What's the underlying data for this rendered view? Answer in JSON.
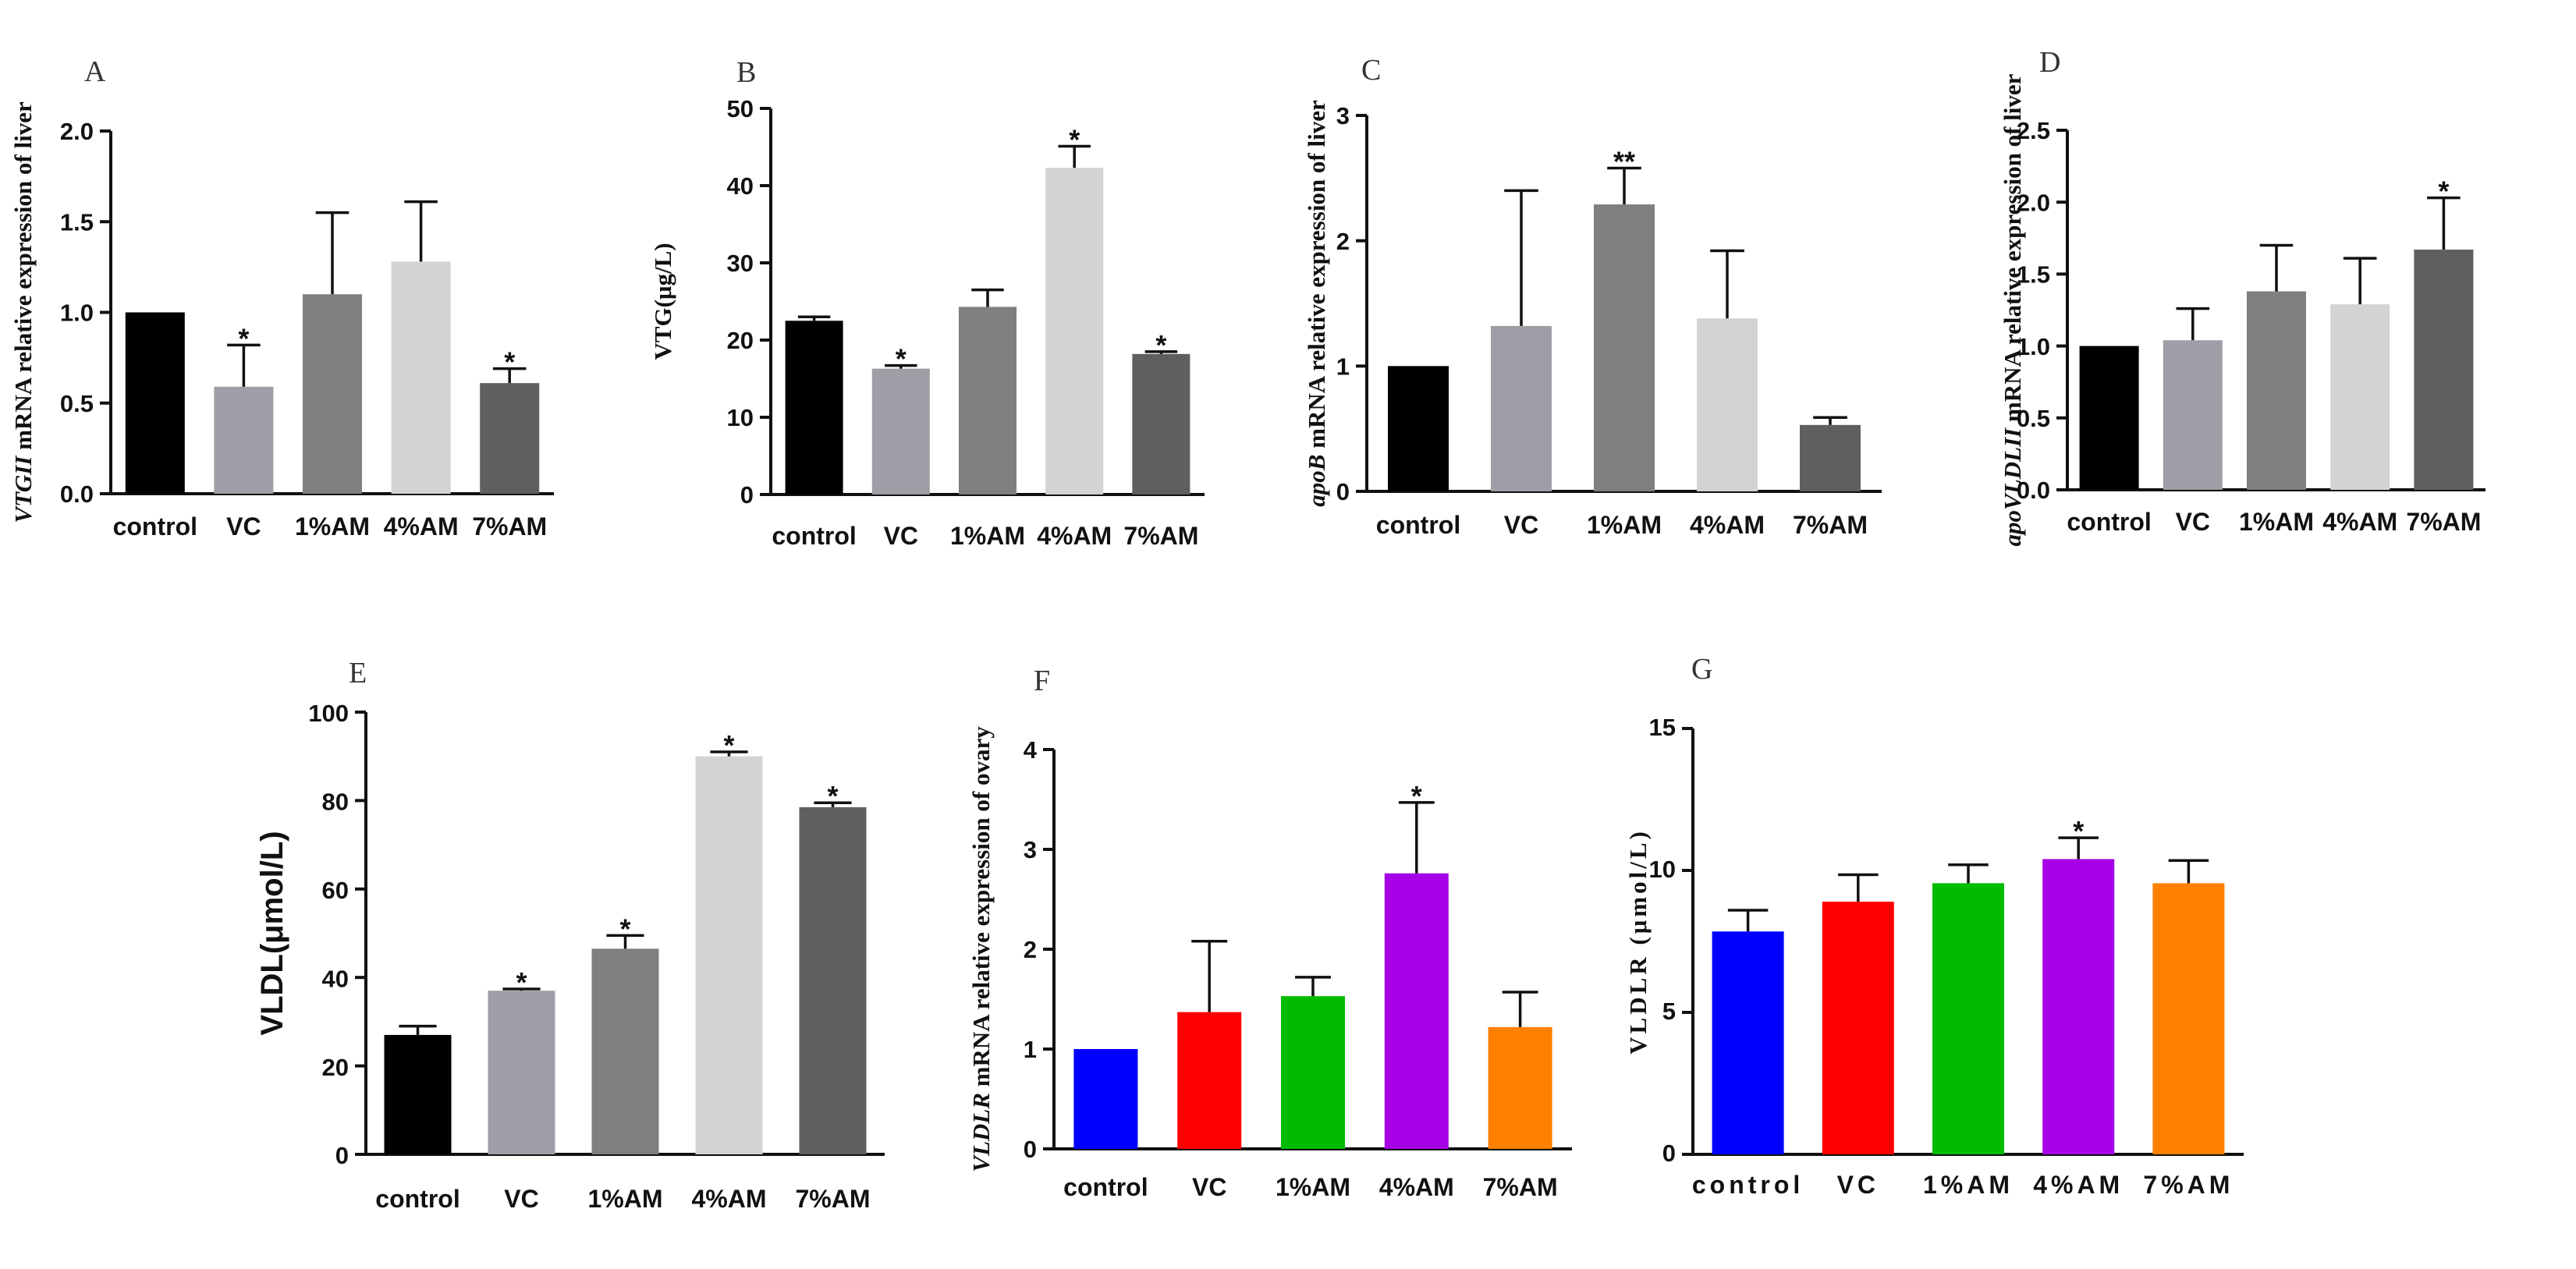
{
  "chart_data": [
    {
      "id": "A",
      "type": "bar",
      "panel_label": "A",
      "title": "",
      "ylabel_parts": [
        {
          "text": "VTGII",
          "italic": true
        },
        {
          "text": " mRNA relative expression of liver",
          "italic": false
        }
      ],
      "categories": [
        "control",
        "VC",
        "1%AM",
        "4%AM",
        "7%AM"
      ],
      "values": [
        1.0,
        0.59,
        1.1,
        1.28,
        0.61
      ],
      "errors": [
        0.0,
        0.23,
        0.45,
        0.33,
        0.08
      ],
      "significance": [
        "",
        "*",
        "",
        "",
        "*"
      ],
      "colors": [
        "#000000",
        "#9e9ea6",
        "#7f7f7f",
        "#d3d3d3",
        "#5f5f5f"
      ],
      "ylim": [
        0,
        2.0
      ],
      "yticks": [
        0.0,
        0.5,
        1.0,
        1.5,
        2.0
      ],
      "tick_decimals": 1
    },
    {
      "id": "B",
      "type": "bar",
      "panel_label": "B",
      "title": "",
      "ylabel_parts": [
        {
          "text": "VTG(μg/L)",
          "italic": false
        }
      ],
      "categories": [
        "control",
        "VC",
        "1%AM",
        "4%AM",
        "7%AM"
      ],
      "values": [
        22.5,
        16.3,
        24.3,
        42.3,
        18.2
      ],
      "errors": [
        0.5,
        0.4,
        2.2,
        2.8,
        0.3
      ],
      "significance": [
        "",
        "*",
        "",
        "*",
        "*"
      ],
      "colors": [
        "#000000",
        "#9e9ea6",
        "#7f7f7f",
        "#d3d3d3",
        "#5f5f5f"
      ],
      "ylim": [
        0,
        50
      ],
      "yticks": [
        0,
        10,
        20,
        30,
        40,
        50
      ],
      "tick_decimals": 0
    },
    {
      "id": "C",
      "type": "bar",
      "panel_label": "C",
      "title": "",
      "ylabel_parts": [
        {
          "text": "apoB",
          "italic": true
        },
        {
          "text": " mRNA relative expression of liver",
          "italic": false
        }
      ],
      "categories": [
        "control",
        "VC",
        "1%AM",
        "4%AM",
        "7%AM"
      ],
      "values": [
        1.0,
        1.32,
        2.29,
        1.38,
        0.53
      ],
      "errors": [
        0.0,
        1.08,
        0.29,
        0.54,
        0.06
      ],
      "significance": [
        "",
        "",
        "**",
        "",
        ""
      ],
      "colors": [
        "#000000",
        "#9e9ea6",
        "#7f7f7f",
        "#d3d3d3",
        "#5f5f5f"
      ],
      "ylim": [
        0,
        3
      ],
      "yticks": [
        0,
        1,
        2,
        3
      ],
      "tick_decimals": 0
    },
    {
      "id": "D",
      "type": "bar",
      "panel_label": "D",
      "title": "",
      "ylabel_parts": [
        {
          "text": "apoVLDLII",
          "italic": true
        },
        {
          "text": " mRNA relative expression of liver",
          "italic": false
        }
      ],
      "categories": [
        "control",
        "VC",
        "1%AM",
        "4%AM",
        "7%AM"
      ],
      "values": [
        1.0,
        1.04,
        1.38,
        1.29,
        1.67
      ],
      "errors": [
        0.0,
        0.22,
        0.32,
        0.32,
        0.36
      ],
      "significance": [
        "",
        "",
        "",
        "",
        "*"
      ],
      "colors": [
        "#000000",
        "#9e9ea6",
        "#7f7f7f",
        "#d3d3d3",
        "#5f5f5f"
      ],
      "ylim": [
        0,
        2.5
      ],
      "yticks": [
        0.0,
        0.5,
        1.0,
        1.5,
        2.0,
        2.5
      ],
      "tick_decimals": 1
    },
    {
      "id": "E",
      "type": "bar",
      "panel_label": "E",
      "title": "",
      "ylabel_parts": [
        {
          "text": "VLDL(μmol/L)",
          "italic": false
        }
      ],
      "categories": [
        "control",
        "VC",
        "1%AM",
        "4%AM",
        "7%AM"
      ],
      "values": [
        27,
        37,
        46.5,
        90,
        78.5
      ],
      "errors": [
        2,
        0.4,
        3,
        1,
        1
      ],
      "significance": [
        "",
        "*",
        "*",
        "*",
        "*"
      ],
      "colors": [
        "#000000",
        "#9e9ea6",
        "#7f7f7f",
        "#d3d3d3",
        "#5f5f5f"
      ],
      "ylim": [
        0,
        100
      ],
      "yticks": [
        0,
        20,
        40,
        60,
        80,
        100
      ],
      "tick_decimals": 0
    },
    {
      "id": "F",
      "type": "bar",
      "panel_label": "F",
      "title": "",
      "ylabel_parts": [
        {
          "text": "VLDLR",
          "italic": true
        },
        {
          "text": " mRNA relative expression of ovary",
          "italic": false
        }
      ],
      "categories": [
        "control",
        "VC",
        "1%AM",
        "4%AM",
        "7%AM"
      ],
      "values": [
        1.0,
        1.37,
        1.53,
        2.76,
        1.22
      ],
      "errors": [
        0.0,
        0.71,
        0.19,
        0.71,
        0.35
      ],
      "significance": [
        "",
        "",
        "",
        "*",
        ""
      ],
      "colors": [
        "#0000ff",
        "#ff0000",
        "#00bb00",
        "#a500e6",
        "#ff8000"
      ],
      "ylim": [
        0,
        4
      ],
      "yticks": [
        0,
        1,
        2,
        3,
        4
      ],
      "tick_decimals": 0
    },
    {
      "id": "G",
      "type": "bar",
      "panel_label": "G",
      "title": "",
      "ylabel_parts": [
        {
          "text": "VLDLR (μmol/L)",
          "italic": false
        }
      ],
      "categories": [
        "control",
        "VC",
        "1%AM",
        "4%AM",
        "7%AM"
      ],
      "values": [
        7.85,
        8.9,
        9.55,
        10.4,
        9.55
      ],
      "errors": [
        0.75,
        0.95,
        0.65,
        0.75,
        0.8
      ],
      "significance": [
        "",
        "",
        "",
        "*",
        ""
      ],
      "colors": [
        "#0000ff",
        "#ff0000",
        "#00bb00",
        "#a500e6",
        "#ff8000"
      ],
      "ylim": [
        0,
        15
      ],
      "yticks": [
        0,
        5,
        10,
        15
      ],
      "tick_decimals": 0
    }
  ]
}
